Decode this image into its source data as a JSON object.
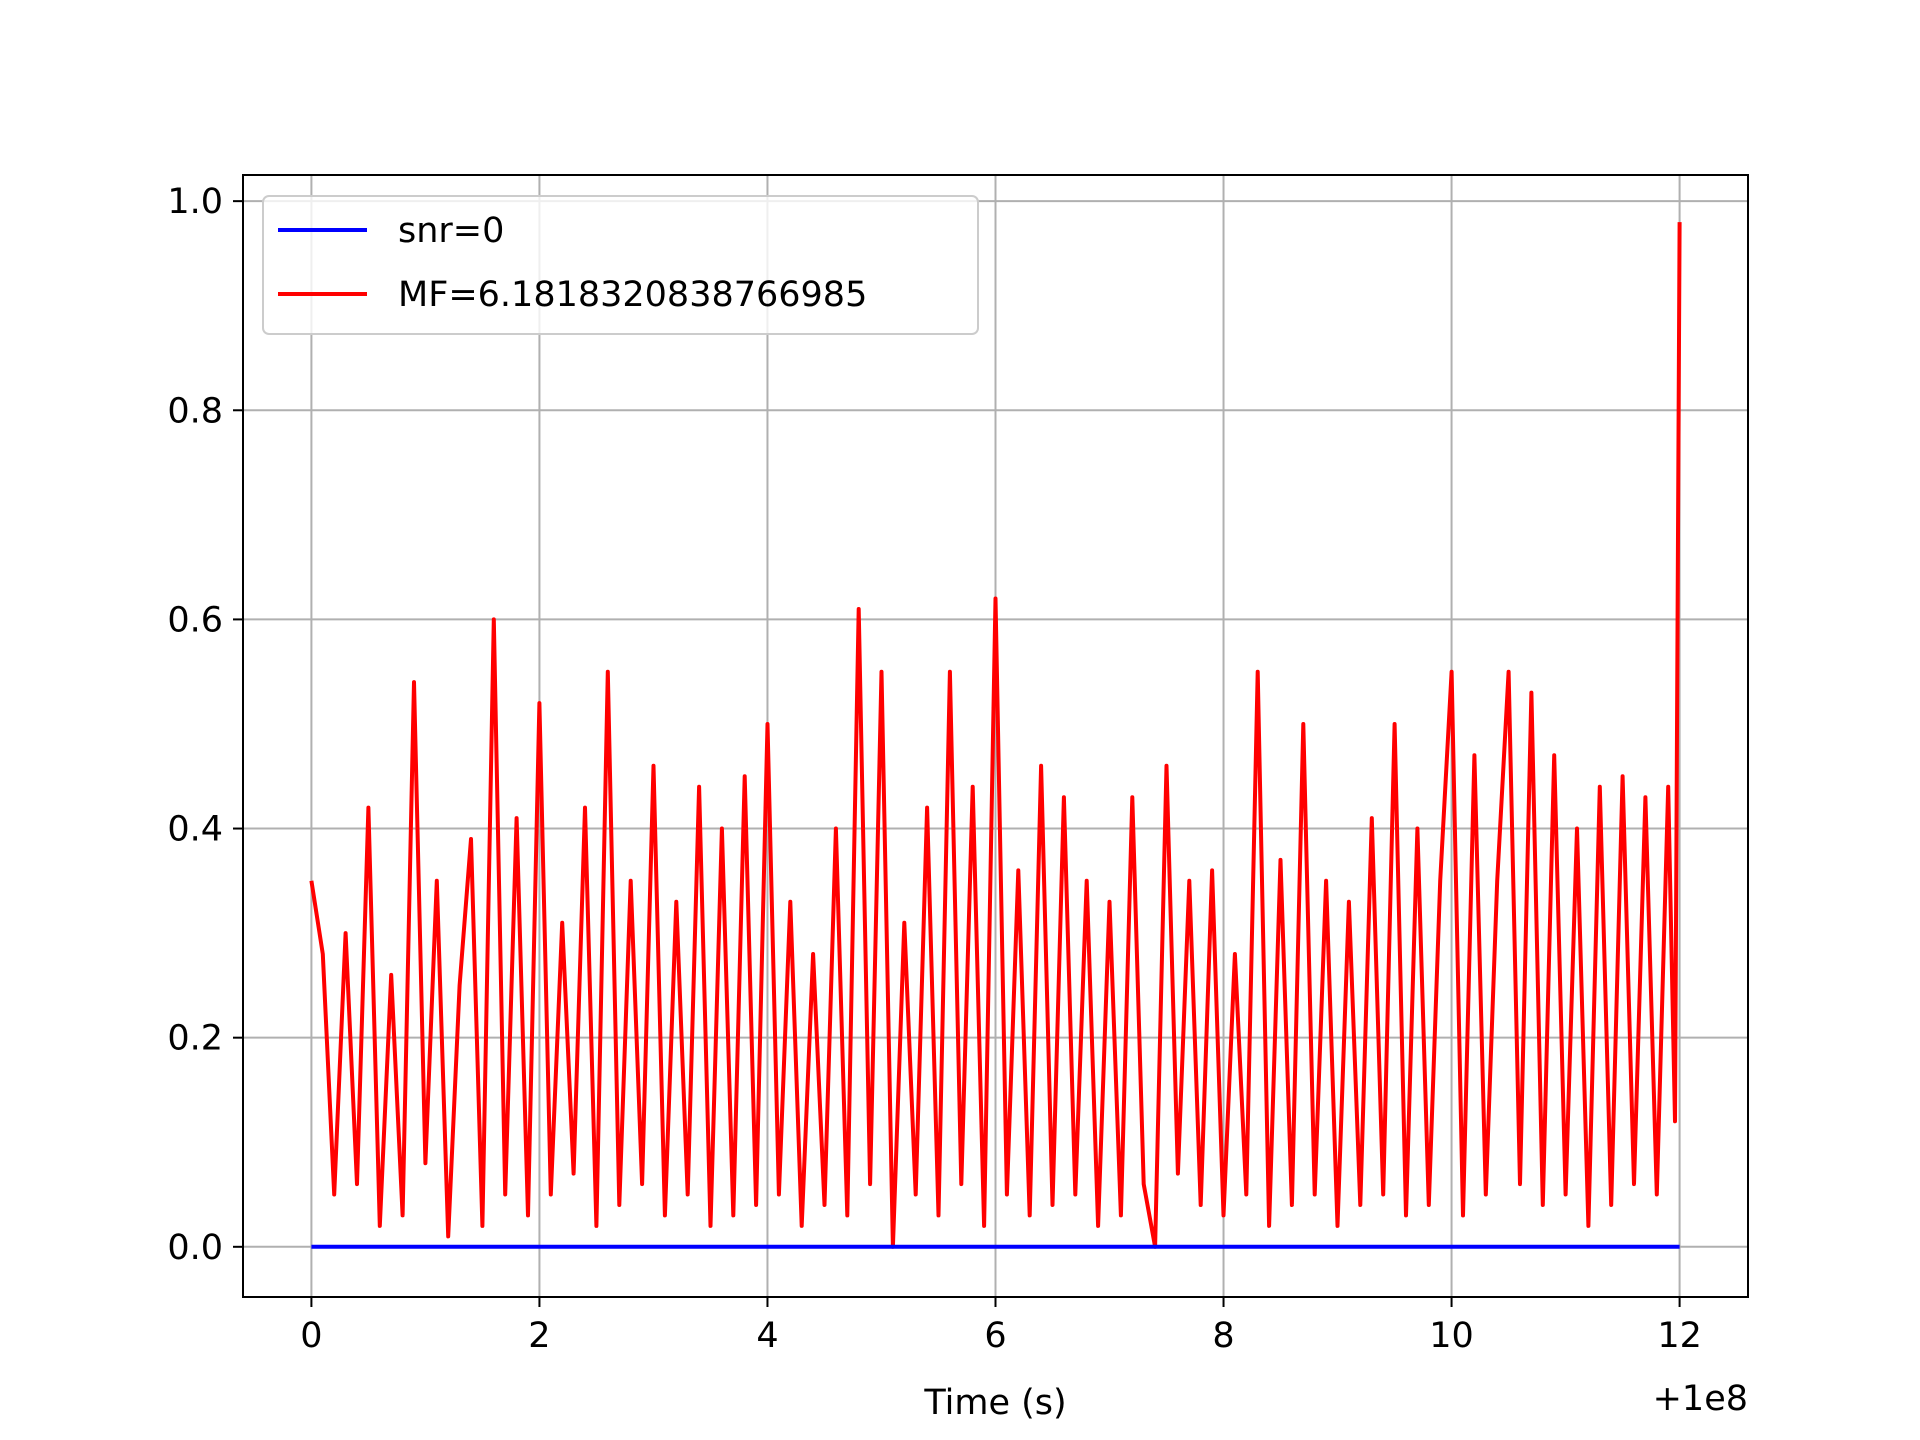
{
  "chart_data": {
    "type": "line",
    "title": "",
    "xlabel": "Time (s)",
    "ylabel": "",
    "x_offset_label": "+1e8",
    "x_offset": 100000000,
    "xlim": [
      -0.6,
      12.6
    ],
    "ylim": [
      -0.048,
      1.025
    ],
    "xticks": [
      0,
      2,
      4,
      6,
      8,
      10,
      12
    ],
    "xtick_labels": [
      "0",
      "2",
      "4",
      "6",
      "8",
      "10",
      "12"
    ],
    "yticks": [
      0.0,
      0.2,
      0.4,
      0.6,
      0.8,
      1.0
    ],
    "ytick_labels": [
      "0.0",
      "0.2",
      "0.4",
      "0.6",
      "0.8",
      "1.0"
    ],
    "grid": true,
    "legend_position": "upper-left",
    "series": [
      {
        "name": "snr=0",
        "color": "#0000ff",
        "x": [
          0,
          12
        ],
        "y": [
          0,
          0
        ]
      },
      {
        "name": "MF=6.1818320838766985",
        "color": "#ff0000",
        "x": [
          0.0,
          0.1,
          0.2,
          0.3,
          0.4,
          0.5,
          0.6,
          0.7,
          0.8,
          0.9,
          1.0,
          1.1,
          1.2,
          1.3,
          1.4,
          1.5,
          1.6,
          1.7,
          1.8,
          1.9,
          2.0,
          2.1,
          2.2,
          2.3,
          2.4,
          2.5,
          2.6,
          2.7,
          2.8,
          2.9,
          3.0,
          3.1,
          3.2,
          3.3,
          3.4,
          3.5,
          3.6,
          3.7,
          3.8,
          3.9,
          4.0,
          4.1,
          4.2,
          4.3,
          4.4,
          4.5,
          4.6,
          4.7,
          4.8,
          4.9,
          5.0,
          5.1,
          5.2,
          5.3,
          5.4,
          5.5,
          5.6,
          5.7,
          5.8,
          5.9,
          6.0,
          6.1,
          6.2,
          6.3,
          6.4,
          6.5,
          6.6,
          6.7,
          6.8,
          6.9,
          7.0,
          7.1,
          7.2,
          7.3,
          7.4,
          7.5,
          7.6,
          7.7,
          7.8,
          7.9,
          8.0,
          8.1,
          8.2,
          8.3,
          8.4,
          8.5,
          8.6,
          8.7,
          8.8,
          8.9,
          9.0,
          9.1,
          9.2,
          9.3,
          9.4,
          9.5,
          9.6,
          9.7,
          9.8,
          9.9,
          10.0,
          10.1,
          10.2,
          10.3,
          10.4,
          10.5,
          10.6,
          10.7,
          10.8,
          10.9,
          11.0,
          11.1,
          11.2,
          11.3,
          11.4,
          11.5,
          11.6,
          11.7,
          11.8,
          11.9,
          11.96,
          12.0
        ],
        "y": [
          0.35,
          0.28,
          0.05,
          0.3,
          0.06,
          0.42,
          0.02,
          0.26,
          0.03,
          0.54,
          0.08,
          0.35,
          0.01,
          0.25,
          0.39,
          0.02,
          0.6,
          0.05,
          0.41,
          0.03,
          0.52,
          0.05,
          0.31,
          0.07,
          0.42,
          0.02,
          0.55,
          0.04,
          0.35,
          0.06,
          0.46,
          0.03,
          0.33,
          0.05,
          0.44,
          0.02,
          0.4,
          0.03,
          0.45,
          0.04,
          0.5,
          0.05,
          0.33,
          0.02,
          0.28,
          0.04,
          0.4,
          0.03,
          0.61,
          0.06,
          0.55,
          0.0,
          0.31,
          0.05,
          0.42,
          0.03,
          0.55,
          0.06,
          0.44,
          0.02,
          0.62,
          0.05,
          0.36,
          0.03,
          0.46,
          0.04,
          0.43,
          0.05,
          0.35,
          0.02,
          0.33,
          0.03,
          0.43,
          0.06,
          0.0,
          0.46,
          0.07,
          0.35,
          0.04,
          0.36,
          0.03,
          0.28,
          0.05,
          0.55,
          0.02,
          0.37,
          0.04,
          0.5,
          0.05,
          0.35,
          0.02,
          0.33,
          0.04,
          0.41,
          0.05,
          0.5,
          0.03,
          0.4,
          0.04,
          0.35,
          0.55,
          0.03,
          0.47,
          0.05,
          0.35,
          0.55,
          0.06,
          0.53,
          0.04,
          0.47,
          0.05,
          0.4,
          0.02,
          0.44,
          0.04,
          0.45,
          0.06,
          0.43,
          0.05,
          0.44,
          0.12,
          0.98
        ]
      }
    ]
  }
}
